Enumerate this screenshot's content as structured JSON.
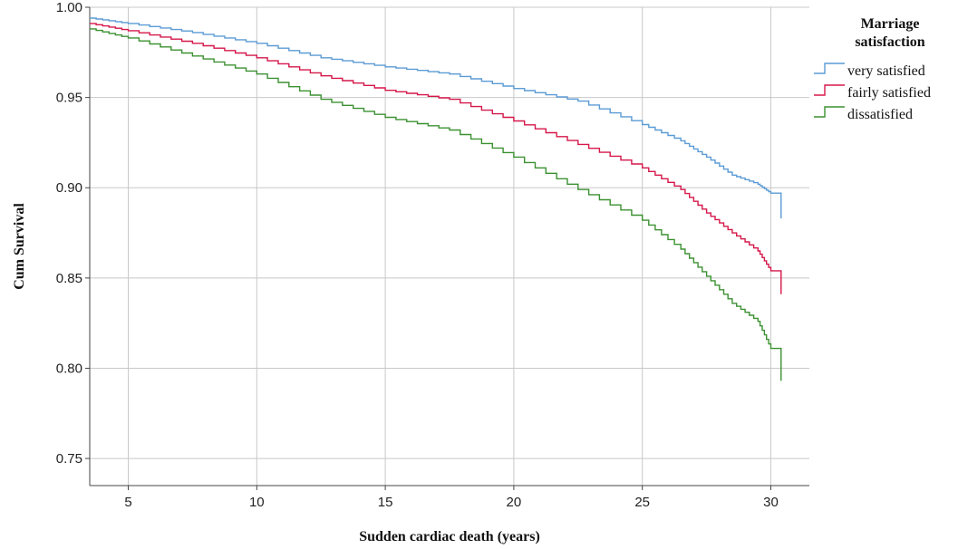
{
  "chart_data": {
    "type": "line",
    "step": true,
    "xlabel": "Sudden cardiac death (years)",
    "ylabel": "Cum Survival",
    "xlim": [
      3.5,
      31.5
    ],
    "ylim": [
      0.735,
      1.0
    ],
    "xticks": [
      5,
      10,
      15,
      20,
      25,
      30
    ],
    "yticks": [
      0.75,
      0.8,
      0.85,
      0.9,
      0.95,
      1.0
    ],
    "xtick_labels": [
      "5",
      "10",
      "15",
      "20",
      "25",
      "30"
    ],
    "ytick_labels": [
      "0.75",
      "0.80",
      "0.85",
      "0.90",
      "0.95",
      "1.00"
    ],
    "grid": true,
    "legend": {
      "title_lines": [
        "Marriage",
        "satisfaction"
      ],
      "position": "top-right outside"
    },
    "series": [
      {
        "name": "very satisfied",
        "color": "#5b9bd5",
        "x": [
          3.5,
          5,
          7.5,
          10,
          12.5,
          15,
          17.5,
          20,
          22.5,
          25,
          26.5,
          27.5,
          28.5,
          29.5,
          30,
          30.4
        ],
        "y": [
          0.994,
          0.991,
          0.986,
          0.98,
          0.972,
          0.967,
          0.963,
          0.955,
          0.948,
          0.935,
          0.926,
          0.917,
          0.907,
          0.902,
          0.897,
          0.883
        ]
      },
      {
        "name": "fairly satisfied",
        "color": "#d5174a",
        "x": [
          3.5,
          5,
          7.5,
          10,
          12.5,
          15,
          17.5,
          20,
          22.5,
          25,
          26.5,
          27.5,
          28.5,
          29.5,
          30,
          30.4
        ],
        "y": [
          0.991,
          0.987,
          0.98,
          0.972,
          0.962,
          0.954,
          0.949,
          0.937,
          0.924,
          0.911,
          0.899,
          0.886,
          0.875,
          0.865,
          0.854,
          0.841
        ]
      },
      {
        "name": "dissatisfied",
        "color": "#3b9131",
        "x": [
          3.5,
          5,
          7.5,
          10,
          12.5,
          15,
          17.5,
          20,
          22.5,
          25,
          26.5,
          27.5,
          28.5,
          29.5,
          30,
          30.4
        ],
        "y": [
          0.988,
          0.983,
          0.973,
          0.963,
          0.949,
          0.939,
          0.932,
          0.917,
          0.899,
          0.882,
          0.866,
          0.851,
          0.836,
          0.826,
          0.811,
          0.793
        ]
      }
    ]
  }
}
